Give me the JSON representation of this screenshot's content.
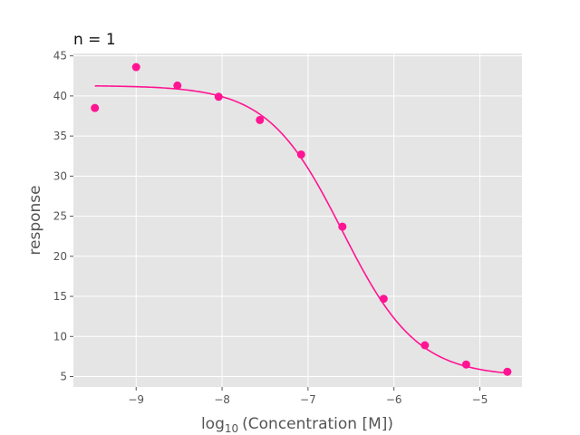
{
  "chart_data": {
    "type": "scatter",
    "title": "n = 1",
    "xlabel_prefix": "log",
    "xlabel_subscript": "10",
    "xlabel_rest": "(Concentration [M])",
    "ylabel": "response",
    "xlim": [
      -9.73,
      -4.51
    ],
    "ylim": [
      3.7,
      45.3
    ],
    "xticks": [
      -9,
      -8,
      -7,
      -6,
      -5
    ],
    "xtick_labels": [
      "−9",
      "−8",
      "−7",
      "−6",
      "−5"
    ],
    "yticks": [
      5,
      10,
      15,
      20,
      25,
      30,
      35,
      40,
      45
    ],
    "ytick_labels": [
      "5",
      "10",
      "15",
      "20",
      "25",
      "30",
      "35",
      "40",
      "45"
    ],
    "grid": true,
    "series": [
      {
        "x": [
          -9.48,
          -9.0,
          -8.52,
          -8.04,
          -7.56,
          -7.08,
          -6.6,
          -6.12,
          -5.64,
          -5.16,
          -4.68
        ],
        "y": [
          38.5,
          43.6,
          41.3,
          39.9,
          37.0,
          32.7,
          23.7,
          14.7,
          8.9,
          6.5,
          5.6
        ]
      }
    ],
    "fit": {
      "model": "4-parameter logistic",
      "top": 41.3,
      "bottom": 5.0,
      "log_ic50": -6.6,
      "hill_slope": -1.0,
      "x_range": [
        -9.48,
        -4.68
      ]
    },
    "colors": {
      "points": "#ff1493",
      "fit_line": "#ff1493",
      "plot_background": "#e5e5e5",
      "grid": "#ffffff"
    }
  }
}
